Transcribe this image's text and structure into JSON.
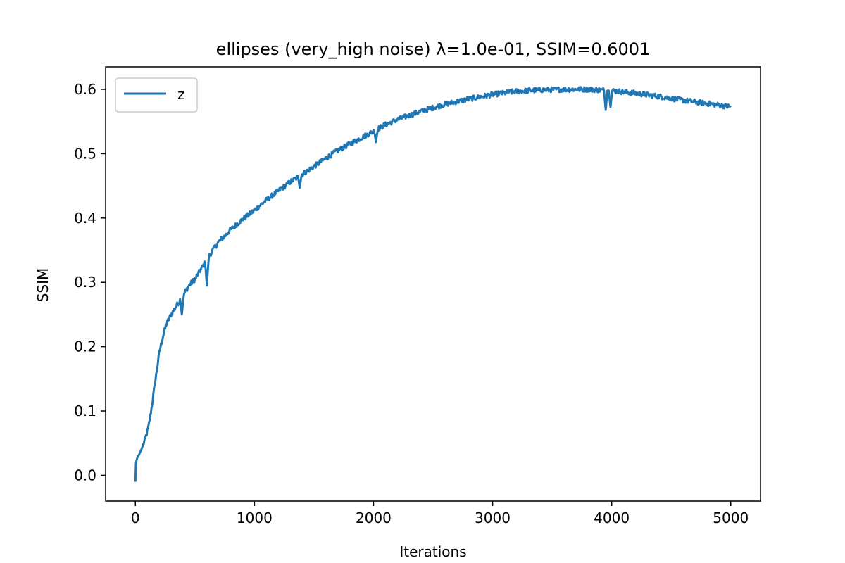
{
  "chart_data": {
    "type": "line",
    "title": "ellipses (very_high noise) λ=1.0e-01, SSIM=0.6001",
    "xlabel": "Iterations",
    "ylabel": "SSIM",
    "xlim": [
      -250,
      5250
    ],
    "ylim": [
      -0.04,
      0.635
    ],
    "xticks": [
      0,
      1000,
      2000,
      3000,
      4000,
      5000
    ],
    "yticks": [
      0.0,
      0.1,
      0.2,
      0.3,
      0.4,
      0.5,
      0.6
    ],
    "ytick_labels": [
      "0.0",
      "0.1",
      "0.2",
      "0.3",
      "0.4",
      "0.5",
      "0.6"
    ],
    "grid": false,
    "legend_position": "top-left",
    "series": [
      {
        "name": "z",
        "color": "#1f77b4",
        "x": [
          0,
          5,
          15,
          30,
          50,
          80,
          110,
          140,
          170,
          200,
          230,
          260,
          300,
          350,
          400,
          450,
          500,
          550,
          600,
          650,
          700,
          750,
          800,
          900,
          1000,
          1100,
          1200,
          1300,
          1400,
          1500,
          1600,
          1700,
          1800,
          1900,
          2000,
          2100,
          2200,
          2400,
          2600,
          2800,
          3000,
          3200,
          3400,
          3600,
          3800,
          4000,
          4200,
          4400,
          4600,
          4800,
          5000
        ],
        "y": [
          -0.01,
          0.02,
          0.027,
          0.032,
          0.04,
          0.055,
          0.075,
          0.11,
          0.15,
          0.19,
          0.215,
          0.235,
          0.25,
          0.265,
          0.28,
          0.295,
          0.305,
          0.32,
          0.335,
          0.35,
          0.363,
          0.372,
          0.382,
          0.398,
          0.412,
          0.428,
          0.442,
          0.456,
          0.468,
          0.48,
          0.493,
          0.505,
          0.515,
          0.525,
          0.535,
          0.545,
          0.553,
          0.566,
          0.577,
          0.585,
          0.592,
          0.597,
          0.599,
          0.6,
          0.6,
          0.598,
          0.594,
          0.589,
          0.583,
          0.578,
          0.573
        ]
      }
    ],
    "dips": [
      {
        "x": 390,
        "y": 0.25
      },
      {
        "x": 600,
        "y": 0.295
      },
      {
        "x": 1380,
        "y": 0.447
      },
      {
        "x": 2020,
        "y": 0.518
      },
      {
        "x": 3950,
        "y": 0.568
      },
      {
        "x": 3990,
        "y": 0.573
      }
    ]
  }
}
